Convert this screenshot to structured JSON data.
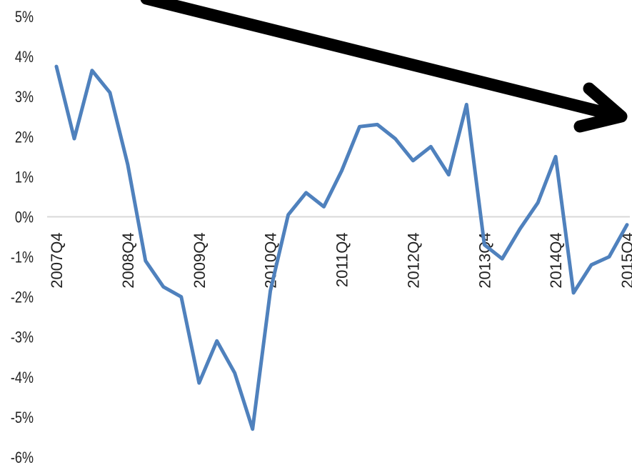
{
  "chart_data": {
    "type": "line",
    "title": "",
    "xlabel": "",
    "ylabel": "",
    "x": [
      "2007Q4",
      "2008Q1",
      "2008Q2",
      "2008Q3",
      "2008Q4",
      "2009Q1",
      "2009Q2",
      "2009Q3",
      "2009Q4",
      "2010Q1",
      "2010Q2",
      "2010Q3",
      "2010Q4",
      "2011Q1",
      "2011Q2",
      "2011Q3",
      "2011Q4",
      "2012Q1",
      "2012Q2",
      "2012Q3",
      "2012Q4",
      "2013Q1",
      "2013Q2",
      "2013Q3",
      "2013Q4",
      "2014Q1",
      "2014Q2",
      "2014Q3",
      "2014Q4",
      "2015Q1",
      "2015Q2",
      "2015Q3",
      "2015Q4"
    ],
    "x_tick_labels": [
      "2007Q4",
      "2008Q4",
      "2009Q4",
      "2010Q4",
      "2011Q4",
      "2012Q4",
      "2013Q4",
      "2014Q4",
      "2015Q4"
    ],
    "series": [
      {
        "name": "",
        "color": "#4F81BD",
        "values": [
          3.75,
          1.95,
          3.65,
          3.1,
          1.3,
          -1.1,
          -1.75,
          -2.0,
          -4.15,
          -3.1,
          -3.9,
          -5.3,
          -1.85,
          0.05,
          0.6,
          0.25,
          1.15,
          2.25,
          2.3,
          1.95,
          1.4,
          1.75,
          1.05,
          2.8,
          -0.7,
          -1.05,
          -0.3,
          0.35,
          1.5,
          -1.9,
          -1.2,
          -1.0,
          -0.2
        ]
      }
    ],
    "ylim": [
      -6,
      5
    ],
    "yticks": [
      -6,
      -5,
      -4,
      -3,
      -2,
      -1,
      0,
      1,
      2,
      3,
      4,
      5
    ],
    "y_tick_labels": [
      "-6%",
      "-5%",
      "-4%",
      "-3%",
      "-2%",
      "-1%",
      "0%",
      "1%",
      "2%",
      "3%",
      "4%",
      "5%"
    ],
    "zero_line_color": "#d9d9d9",
    "annotation": {
      "type": "arrow",
      "color": "#000000",
      "meaning": "downward trend"
    }
  }
}
